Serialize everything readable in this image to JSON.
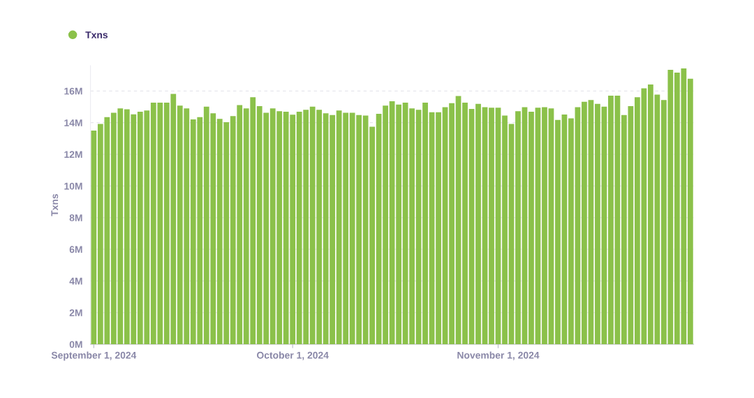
{
  "chart_data": {
    "type": "bar",
    "ylabel": "Txns",
    "x": [
      "2024-09-01",
      "2024-09-02",
      "2024-09-03",
      "2024-09-04",
      "2024-09-05",
      "2024-09-06",
      "2024-09-07",
      "2024-09-08",
      "2024-09-09",
      "2024-09-10",
      "2024-09-11",
      "2024-09-12",
      "2024-09-13",
      "2024-09-14",
      "2024-09-15",
      "2024-09-16",
      "2024-09-17",
      "2024-09-18",
      "2024-09-19",
      "2024-09-20",
      "2024-09-21",
      "2024-09-22",
      "2024-09-23",
      "2024-09-24",
      "2024-09-25",
      "2024-09-26",
      "2024-09-27",
      "2024-09-28",
      "2024-09-29",
      "2024-09-30",
      "2024-10-01",
      "2024-10-02",
      "2024-10-03",
      "2024-10-04",
      "2024-10-05",
      "2024-10-06",
      "2024-10-07",
      "2024-10-08",
      "2024-10-09",
      "2024-10-10",
      "2024-10-11",
      "2024-10-12",
      "2024-10-13",
      "2024-10-14",
      "2024-10-15",
      "2024-10-16",
      "2024-10-17",
      "2024-10-18",
      "2024-10-19",
      "2024-10-20",
      "2024-10-21",
      "2024-10-22",
      "2024-10-23",
      "2024-10-24",
      "2024-10-25",
      "2024-10-26",
      "2024-10-27",
      "2024-10-28",
      "2024-10-29",
      "2024-10-30",
      "2024-10-31",
      "2024-11-01",
      "2024-11-02",
      "2024-11-03",
      "2024-11-04",
      "2024-11-05",
      "2024-11-06",
      "2024-11-07",
      "2024-11-08",
      "2024-11-09",
      "2024-11-10",
      "2024-11-11",
      "2024-11-12",
      "2024-11-13",
      "2024-11-14",
      "2024-11-15",
      "2024-11-16",
      "2024-11-17",
      "2024-11-18",
      "2024-11-19",
      "2024-11-20",
      "2024-11-21",
      "2024-11-22",
      "2024-11-23",
      "2024-11-24",
      "2024-11-25",
      "2024-11-26",
      "2024-11-27",
      "2024-11-28",
      "2024-11-29",
      "2024-11-30"
    ],
    "series": [
      {
        "name": "Txns",
        "color": "#8bc14a",
        "values": [
          13.5,
          13.92,
          14.35,
          14.63,
          14.9,
          14.84,
          14.53,
          14.69,
          14.77,
          15.26,
          15.26,
          15.26,
          15.82,
          15.08,
          14.9,
          14.21,
          14.35,
          15.01,
          14.59,
          14.24,
          14.03,
          14.42,
          15.11,
          14.9,
          15.61,
          15.04,
          14.62,
          14.9,
          14.72,
          14.69,
          14.5,
          14.69,
          14.81,
          15.01,
          14.81,
          14.59,
          14.48,
          14.77,
          14.62,
          14.62,
          14.48,
          14.45,
          13.74,
          14.56,
          15.08,
          15.35,
          15.14,
          15.26,
          14.9,
          14.81,
          15.26,
          14.66,
          14.66,
          14.98,
          15.23,
          15.68,
          15.26,
          14.87,
          15.19,
          14.98,
          14.95,
          14.95,
          14.45,
          13.92,
          14.72,
          14.98,
          14.69,
          14.95,
          14.98,
          14.9,
          14.17,
          14.51,
          14.27,
          14.98,
          15.32,
          15.43,
          15.19,
          15.01,
          15.71,
          15.71,
          14.48,
          15.04,
          15.61,
          16.17,
          16.41,
          15.77,
          15.43,
          17.34,
          17.16,
          17.43,
          16.77
        ]
      }
    ],
    "xlim": [
      "2024-08-31T12:00",
      "2024-11-30T12:00"
    ],
    "xticks": [
      {
        "value": "2024-09-01",
        "label": "September 1, 2024"
      },
      {
        "value": "2024-10-01",
        "label": "October 1, 2024"
      },
      {
        "value": "2024-11-01",
        "label": "November 1, 2024"
      }
    ],
    "ylim": [
      0,
      17.6
    ],
    "yticks": [
      {
        "value": 0,
        "label": "0M"
      },
      {
        "value": 2,
        "label": "2M"
      },
      {
        "value": 4,
        "label": "4M"
      },
      {
        "value": 6,
        "label": "6M"
      },
      {
        "value": 8,
        "label": "8M"
      },
      {
        "value": 10,
        "label": "10M"
      },
      {
        "value": 12,
        "label": "12M"
      },
      {
        "value": 14,
        "label": "14M"
      },
      {
        "value": 16,
        "label": "16M"
      }
    ],
    "grid": "y",
    "legend": "top left"
  }
}
